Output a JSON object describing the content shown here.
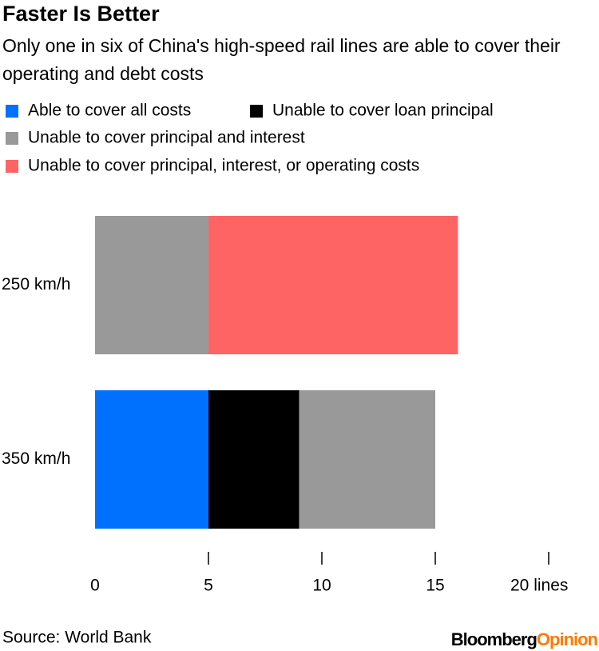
{
  "chart_data": {
    "type": "stacked-barh",
    "title": "Faster Is Better",
    "subtitle": "Only one in six of China's high-speed rail lines are able to cover their operating and debt costs",
    "categories": [
      "250 km/h",
      "350 km/h"
    ],
    "series": [
      {
        "name": "Able to cover all costs",
        "color": "#0070ff",
        "values": [
          0,
          5
        ]
      },
      {
        "name": "Unable to cover loan principal",
        "color": "#000000",
        "values": [
          0,
          4
        ]
      },
      {
        "name": "Unable to cover principal and interest",
        "color": "#999999",
        "values": [
          5,
          6
        ]
      },
      {
        "name": "Unable to cover principal, interest, or operating costs",
        "color": "#ff6464",
        "values": [
          11,
          0
        ]
      }
    ],
    "xlim": [
      0,
      20
    ],
    "xticks": [
      0,
      5,
      10,
      15,
      {
        "value": 20,
        "label": "20 lines"
      }
    ],
    "source": "Source: World Bank",
    "logo": {
      "brand": "Bloomberg",
      "product": "Opinion"
    }
  }
}
